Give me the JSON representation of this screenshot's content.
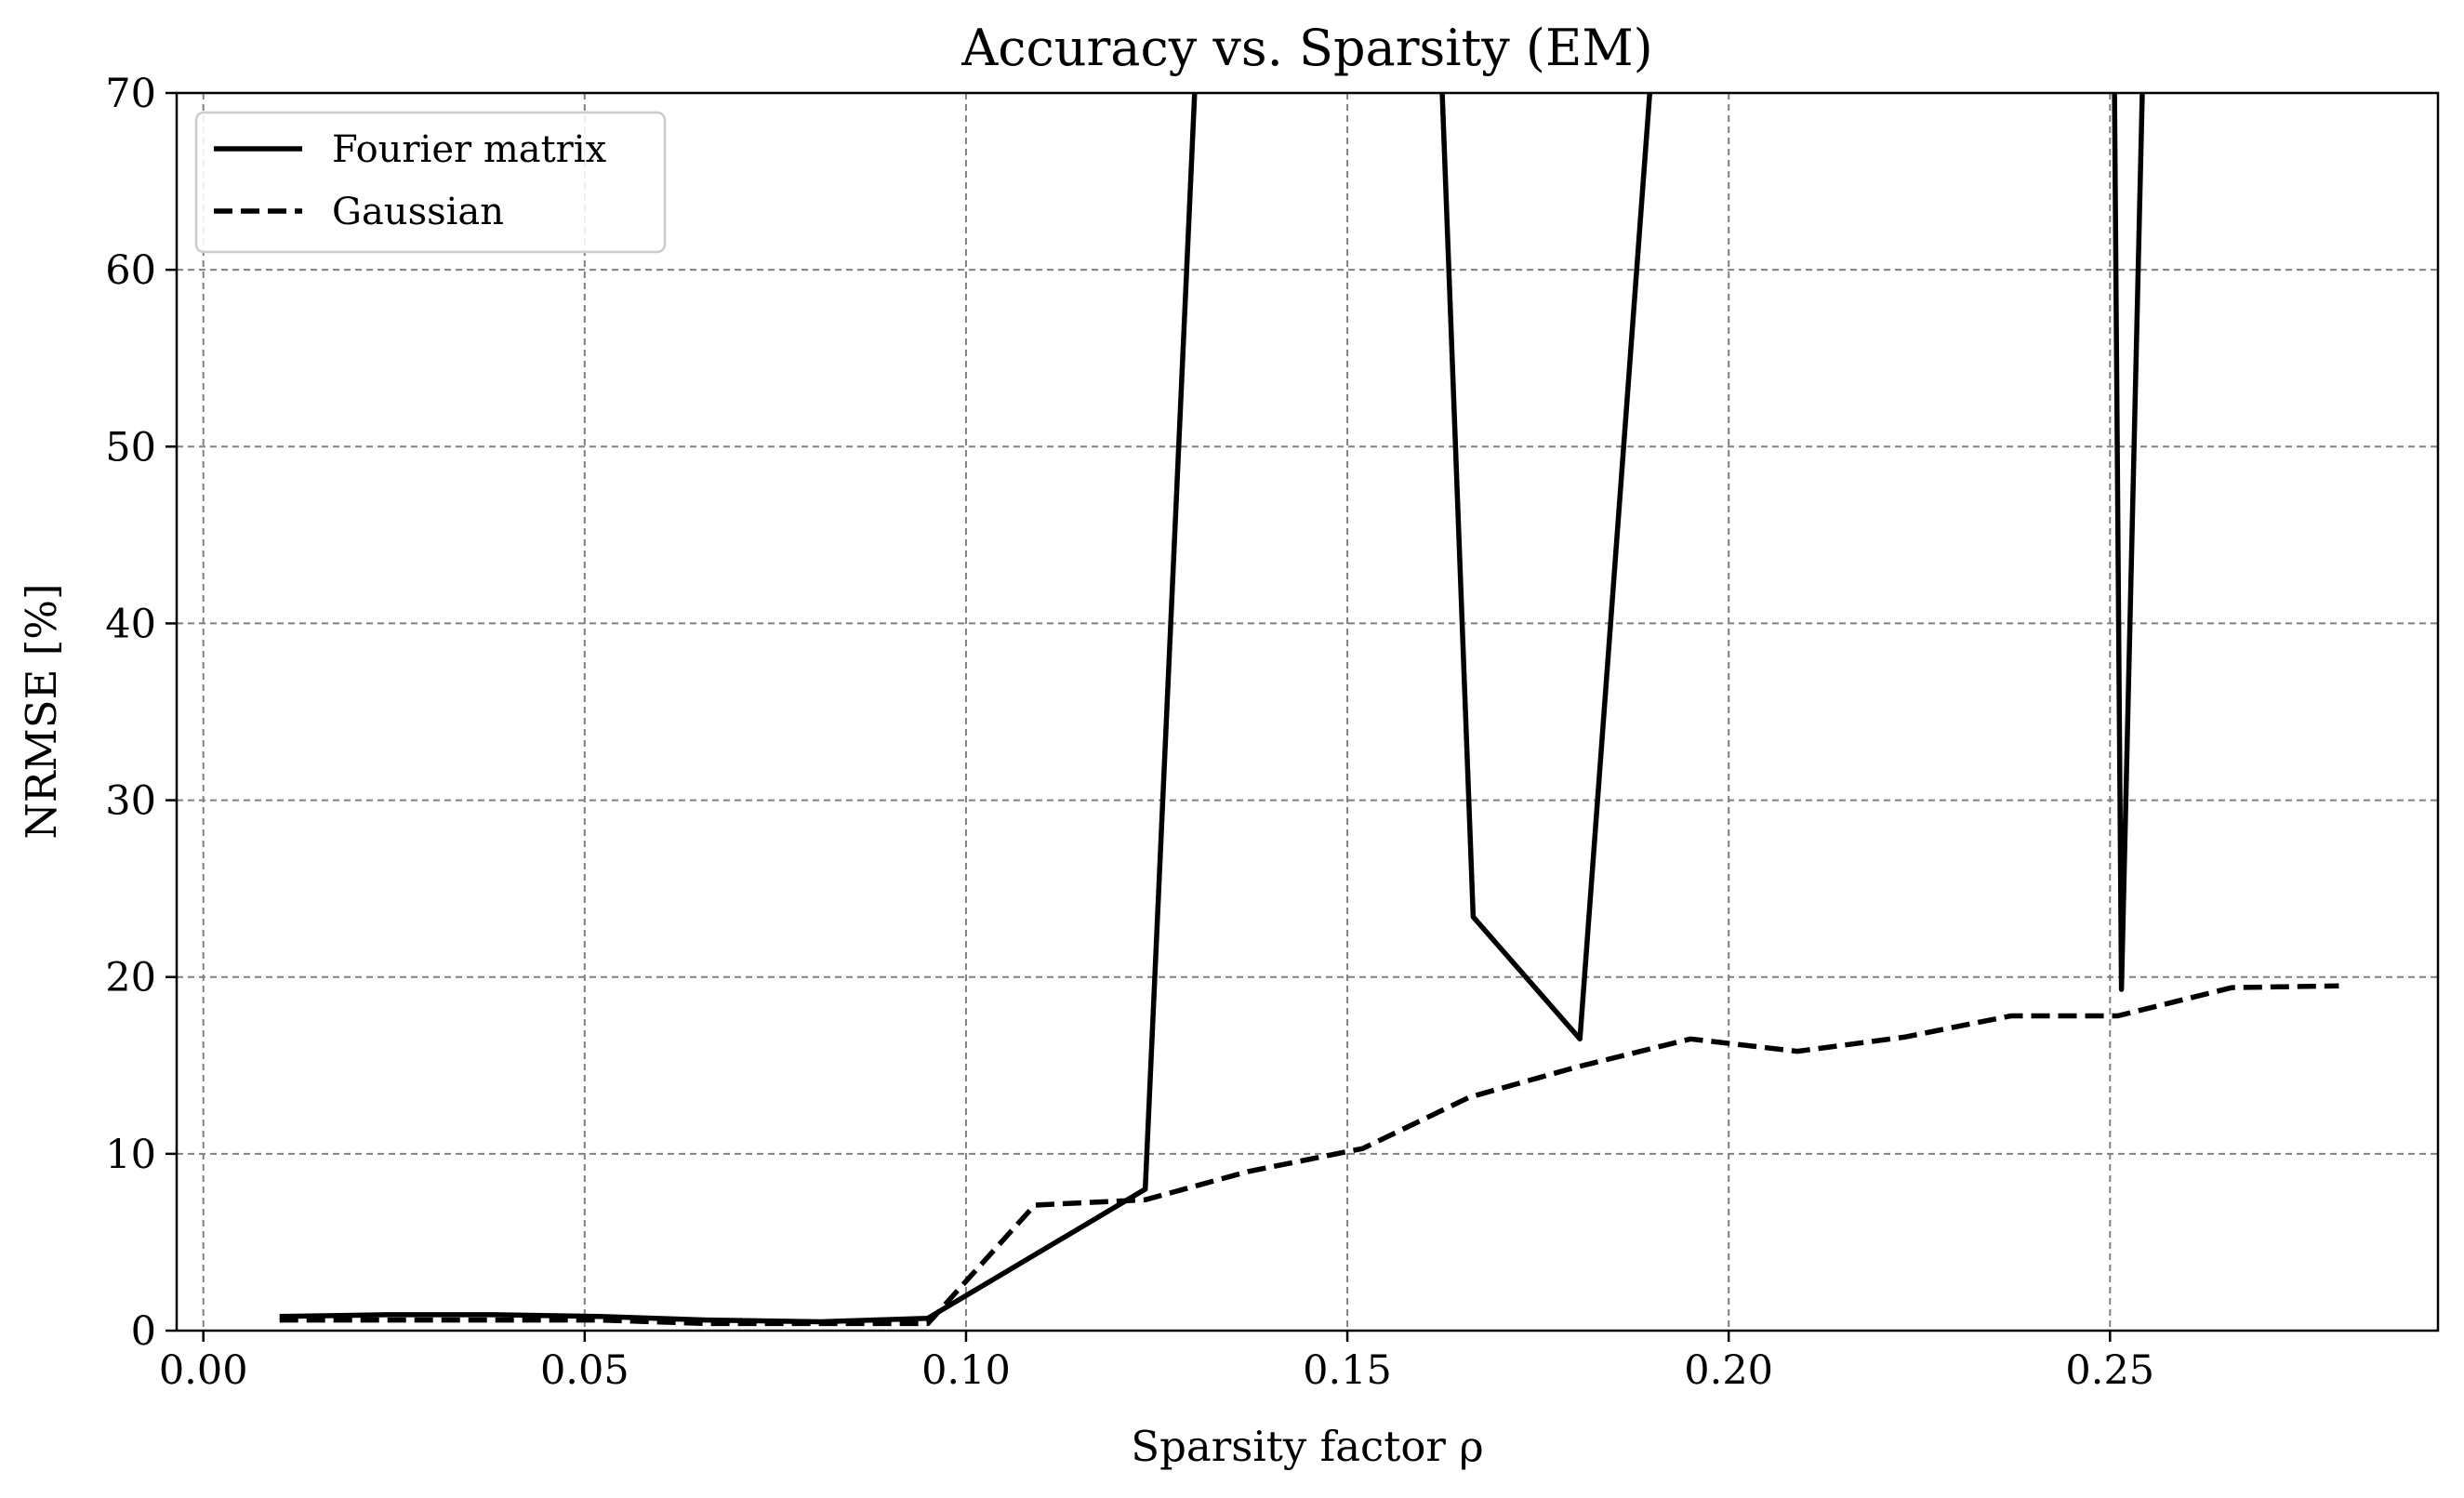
{
  "chart_data": {
    "type": "line",
    "title": "Accuracy vs. Sparsity (EM)",
    "xlabel": "Sparsity factor ρ",
    "ylabel": "NRMSE [%]",
    "xlim": [
      -0.0035,
      0.293
    ],
    "ylim": [
      0,
      70
    ],
    "xticks": [
      0.0,
      0.05,
      0.1,
      0.15,
      0.2,
      0.25
    ],
    "xtick_labels": [
      "0.00",
      "0.05",
      "0.10",
      "0.15",
      "0.20",
      "0.25"
    ],
    "yticks": [
      0,
      10,
      20,
      30,
      40,
      50,
      60,
      70
    ],
    "ytick_labels": [
      "0",
      "10",
      "20",
      "30",
      "40",
      "50",
      "60",
      "70"
    ],
    "grid": true,
    "legend_position": "top-left",
    "series": [
      {
        "name": "Fourier matrix",
        "style": "solid",
        "color": "#000000",
        "x": [
          0.01,
          0.024,
          0.038,
          0.052,
          0.066,
          0.081,
          0.095,
          0.1235,
          0.1305,
          0.162,
          0.1665,
          0.1805,
          0.1905,
          0.2505,
          0.2515,
          0.2545
        ],
        "y": [
          0.8,
          0.9,
          0.9,
          0.8,
          0.6,
          0.5,
          0.7,
          8.0,
          75,
          75,
          23.4,
          16.5,
          75,
          75,
          19.3,
          75
        ]
      },
      {
        "name": "Gaussian",
        "style": "dashed",
        "color": "#000000",
        "x": [
          0.01,
          0.024,
          0.038,
          0.052,
          0.066,
          0.081,
          0.095,
          0.109,
          0.1235,
          0.137,
          0.152,
          0.166,
          0.18,
          0.195,
          0.209,
          0.223,
          0.237,
          0.251,
          0.266,
          0.28
        ],
        "y": [
          0.6,
          0.6,
          0.6,
          0.6,
          0.4,
          0.4,
          0.4,
          7.1,
          7.4,
          9.0,
          10.3,
          13.2,
          14.9,
          16.5,
          15.8,
          16.6,
          17.8,
          17.8,
          19.4,
          19.5
        ]
      }
    ]
  }
}
